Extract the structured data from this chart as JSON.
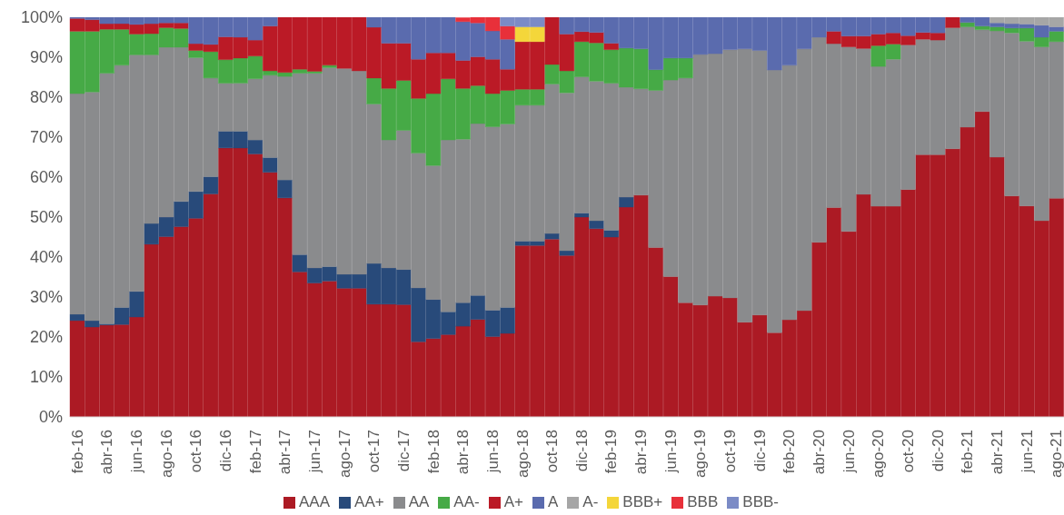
{
  "chart_data": {
    "type": "bar",
    "stacked": true,
    "grid": false,
    "legend": "bottom",
    "categories": [
      "feb-16",
      null,
      "abr-16",
      null,
      "jun-16",
      null,
      "ago-16",
      null,
      "oct-16",
      null,
      "dic-16",
      null,
      "feb-17",
      null,
      "abr-17",
      null,
      "jun-17",
      null,
      "ago-17",
      null,
      "oct-17",
      null,
      "dic-17",
      null,
      "feb-18",
      null,
      "abr-18",
      null,
      "jun-18",
      null,
      "ago-18",
      null,
      "oct-18",
      null,
      "dic-18",
      null,
      "feb-19",
      null,
      "abr-19",
      null,
      "jun-19",
      null,
      "ago-19",
      null,
      "oct-19",
      null,
      "dic-19",
      null,
      "feb-20",
      null,
      "abr-20",
      null,
      "jun-20",
      null,
      "ago-20",
      null,
      "oct-20",
      null,
      "dic-20",
      null,
      "feb-21",
      null,
      "abr-21",
      null,
      "jun-21",
      null,
      "ago-21"
    ],
    "ylim": [
      0,
      100
    ],
    "yticks": [
      {
        "value": 0,
        "label": "0%"
      },
      {
        "value": 10,
        "label": "10%"
      },
      {
        "value": 20,
        "label": "20%"
      },
      {
        "value": 30,
        "label": "30%"
      },
      {
        "value": 40,
        "label": "40%"
      },
      {
        "value": 50,
        "label": "50%"
      },
      {
        "value": 60,
        "label": "60%"
      },
      {
        "value": 70,
        "label": "70%"
      },
      {
        "value": 80,
        "label": "80%"
      },
      {
        "value": 90,
        "label": "90%"
      },
      {
        "value": 100,
        "label": "100%"
      }
    ],
    "series": [
      {
        "name": "AAA",
        "color": "#ac1a24",
        "values": [
          24.1,
          22.5,
          23.0,
          23.1,
          25.0,
          43.2,
          45.1,
          47.6,
          49.7,
          55.8,
          67.3,
          67.3,
          65.8,
          61.2,
          54.8,
          36.3,
          33.5,
          34.0,
          32.2,
          32.2,
          28.2,
          28.2,
          28.1,
          18.8,
          19.6,
          20.6,
          22.7,
          24.4,
          20.1,
          20.9,
          42.9,
          42.9,
          44.5,
          40.4,
          50.0,
          47.1,
          45.0,
          52.5,
          55.5,
          42.4,
          35.1,
          28.6,
          28.0,
          30.2,
          29.8,
          23.7,
          25.5,
          21.1,
          24.3,
          26.6,
          43.7,
          52.4,
          46.4,
          55.7,
          52.7,
          52.7,
          56.9,
          65.6,
          65.6,
          67.1,
          72.5,
          76.4,
          65.0,
          55.3,
          52.8,
          49.1,
          54.7
        ]
      },
      {
        "name": "AA+",
        "color": "#284a7a",
        "values": [
          1.6,
          1.6,
          0.3,
          4.3,
          6.4,
          5.2,
          4.9,
          6.3,
          6.7,
          4.3,
          4.2,
          4.2,
          3.5,
          3.7,
          4.5,
          4.3,
          3.8,
          3.6,
          3.5,
          3.5,
          10.2,
          9.1,
          8.8,
          13.5,
          9.8,
          5.7,
          5.9,
          6.0,
          6.6,
          6.5,
          1.1,
          1.1,
          1.4,
          1.2,
          1.0,
          2.0,
          1.7,
          2.5,
          0,
          0,
          0,
          0,
          0,
          0,
          0,
          0,
          0,
          0,
          0,
          0,
          0,
          0,
          0,
          0,
          0,
          0,
          0,
          0,
          0,
          0,
          0,
          0,
          0,
          0,
          0,
          0,
          0
        ]
      },
      {
        "name": "AA",
        "color": "#8a8b8d",
        "values": [
          55.2,
          57.2,
          62.7,
          60.6,
          59.2,
          42.2,
          42.5,
          38.6,
          33.5,
          24.7,
          12.0,
          12.0,
          15.3,
          20.6,
          25.9,
          45.4,
          48.7,
          49.8,
          51.5,
          50.9,
          39.9,
          32.0,
          34.8,
          33.7,
          33.5,
          43.0,
          40.9,
          43.0,
          45.9,
          45.9,
          34.0,
          34.0,
          37.4,
          39.5,
          34.1,
          34.9,
          36.8,
          27.5,
          26.6,
          39.3,
          49.2,
          56.2,
          62.7,
          60.7,
          62.1,
          68.4,
          66.2,
          65.7,
          63.7,
          65.5,
          51.3,
          41.0,
          46.2,
          36.5,
          35.0,
          36.8,
          36.2,
          28.9,
          28.7,
          30.3,
          25.1,
          20.5,
          31.6,
          40.8,
          41.2,
          43.5,
          39.2
        ]
      },
      {
        "name": "AA-",
        "color": "#46aa46",
        "values": [
          15.6,
          15.2,
          11.0,
          9.0,
          5.2,
          5.3,
          4.9,
          4.7,
          1.8,
          6.6,
          5.9,
          6.3,
          5.7,
          1.1,
          1.0,
          1.0,
          0.5,
          0.6,
          0,
          0,
          6.5,
          12.9,
          12.5,
          13.7,
          18.0,
          15.3,
          12.7,
          9.5,
          8.3,
          8.4,
          4.0,
          4.0,
          4.9,
          5.5,
          8.8,
          9.6,
          8.4,
          9.8,
          10.0,
          5.2,
          5.5,
          5.0,
          0,
          0,
          0,
          0,
          0,
          0,
          0,
          0,
          0,
          0,
          0,
          0,
          5.2,
          3.8,
          0,
          0,
          0,
          0,
          1.1,
          0.9,
          1.0,
          1.2,
          3.3,
          2.4,
          2.6
        ]
      },
      {
        "name": "A+",
        "color": "#bb1a26",
        "values": [
          3.2,
          2.9,
          1.4,
          1.4,
          2.4,
          2.5,
          1.2,
          1.4,
          1.7,
          1.8,
          5.7,
          5.2,
          4.0,
          11.2,
          13.8,
          13.0,
          13.5,
          12.0,
          12.8,
          13.4,
          12.7,
          11.3,
          9.3,
          9.8,
          10.2,
          6.5,
          7.0,
          7.2,
          8.6,
          5.3,
          11.9,
          11.9,
          11.8,
          9.2,
          2.5,
          2.6,
          1.6,
          0,
          0,
          0,
          0,
          0,
          0,
          0,
          0,
          0,
          0,
          0,
          0,
          0,
          0,
          3.1,
          2.7,
          3.1,
          2.9,
          2.8,
          2.3,
          1.7,
          1.8,
          2.6,
          0,
          0,
          0,
          0,
          0,
          0,
          0
        ]
      },
      {
        "name": "A",
        "color": "#5a6bae",
        "values": [
          0.3,
          0.6,
          1.6,
          1.6,
          1.8,
          1.6,
          1.4,
          1.4,
          6.6,
          6.8,
          4.9,
          5.0,
          5.7,
          2.2,
          0,
          0,
          0,
          0,
          0,
          0,
          2.5,
          6.5,
          6.5,
          10.5,
          8.9,
          8.9,
          9.7,
          8.5,
          7.1,
          7.5,
          0,
          0,
          0,
          4.2,
          3.6,
          3.8,
          6.5,
          7.7,
          7.9,
          13.1,
          10.2,
          10.2,
          9.3,
          9.1,
          8.1,
          7.9,
          8.3,
          13.2,
          12.0,
          7.9,
          5.0,
          3.5,
          4.7,
          4.7,
          4.2,
          3.9,
          4.6,
          3.8,
          3.9,
          0,
          1.3,
          2.2,
          1.0,
          1.1,
          1.0,
          3.0,
          1.1
        ]
      },
      {
        "name": "A-",
        "color": "#a6a6a6",
        "values": [
          0,
          0,
          0,
          0,
          0,
          0,
          0,
          0,
          0,
          0,
          0,
          0,
          0,
          0,
          0,
          0,
          0,
          0,
          0,
          0,
          0,
          0,
          0,
          0,
          0,
          0,
          0,
          0,
          0,
          0,
          0,
          0,
          0,
          0,
          0,
          0,
          0,
          0,
          0,
          0,
          0,
          0,
          0,
          0,
          0,
          0,
          0,
          0,
          0,
          0,
          0,
          0,
          0,
          0,
          0,
          0,
          0,
          0,
          0,
          0,
          0,
          0,
          1.4,
          1.6,
          1.7,
          2.0,
          2.4
        ]
      },
      {
        "name": "BBB+",
        "color": "#f4d63a",
        "values": [
          0,
          0,
          0,
          0,
          0,
          0,
          0,
          0,
          0,
          0,
          0,
          0,
          0,
          0,
          0,
          0,
          0,
          0,
          0,
          0,
          0,
          0,
          0,
          0,
          0,
          0,
          0,
          0,
          0,
          0,
          3.7,
          3.7,
          0,
          0,
          0,
          0,
          0,
          0,
          0,
          0,
          0,
          0,
          0,
          0,
          0,
          0,
          0,
          0,
          0,
          0,
          0,
          0,
          0,
          0,
          0,
          0,
          0,
          0,
          0,
          0,
          0,
          0,
          0,
          0,
          0,
          0,
          0
        ]
      },
      {
        "name": "BBB",
        "color": "#e8303a",
        "values": [
          0,
          0,
          0,
          0,
          0,
          0,
          0,
          0,
          0,
          0,
          0,
          0,
          0,
          0,
          0,
          0,
          0,
          0,
          0,
          0,
          0,
          0,
          0,
          0,
          0,
          0,
          1.0,
          1.4,
          3.4,
          3.3,
          0,
          0,
          0,
          0,
          0,
          0,
          0,
          0,
          0,
          0,
          0,
          0,
          0,
          0,
          0,
          0,
          0,
          0,
          0,
          0,
          0,
          0,
          0,
          0,
          0,
          0,
          0,
          0,
          0,
          0,
          0,
          0,
          0,
          0,
          0,
          0,
          0
        ]
      },
      {
        "name": "BBB-",
        "color": "#7b8bc6",
        "values": [
          0,
          0,
          0,
          0,
          0,
          0,
          0,
          0,
          0,
          0,
          0,
          0,
          0,
          0,
          0,
          0,
          0,
          0,
          0,
          0,
          0,
          0,
          0,
          0,
          0,
          0,
          0,
          0,
          0,
          2.2,
          2.4,
          2.4,
          0,
          0,
          0,
          0,
          0,
          0,
          0,
          0,
          0,
          0,
          0,
          0,
          0,
          0,
          0,
          0,
          0,
          0,
          0,
          0,
          0,
          0,
          0,
          0,
          0,
          0,
          0,
          0,
          0,
          0,
          0,
          0,
          0,
          0,
          0
        ]
      }
    ]
  }
}
